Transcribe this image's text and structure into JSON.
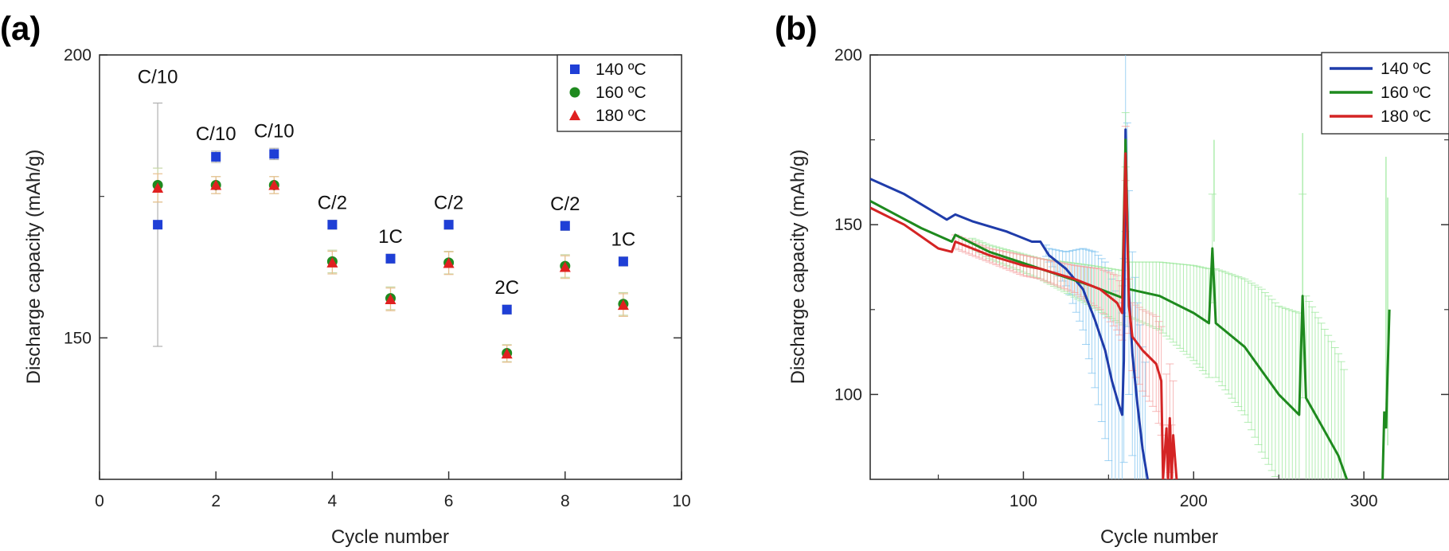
{
  "panel_labels": {
    "a": "(a)",
    "b": "(b)"
  },
  "colors": {
    "s140": "#1f3fd6",
    "s160": "#1f8a1f",
    "s180": "#e02020",
    "s140_line": "#1f3caa",
    "s160_line": "#1e8a1e",
    "s180_line": "#d42424",
    "s140_err": "#7fc4f0",
    "s160_err": "#9be89b",
    "s180_err": "#f5a0a0"
  },
  "chart_data": [
    {
      "id": "a",
      "type": "scatter",
      "xlabel": "Cycle number",
      "ylabel": "Discharge capacity (mAh/g)",
      "xlim": [
        0,
        10
      ],
      "ylim": [
        125,
        200
      ],
      "xticks": [
        "0",
        "2",
        "4",
        "6",
        "8",
        "10"
      ],
      "yticks": [
        "150",
        "200"
      ],
      "legend_position": "top-right",
      "rate_labels": [
        {
          "x": 1,
          "text": "C/10"
        },
        {
          "x": 2,
          "text": "C/10"
        },
        {
          "x": 3,
          "text": "C/10"
        },
        {
          "x": 4,
          "text": "C/2"
        },
        {
          "x": 5,
          "text": "1C"
        },
        {
          "x": 6,
          "text": "C/2"
        },
        {
          "x": 7,
          "text": "2C"
        },
        {
          "x": 8,
          "text": "C/2"
        },
        {
          "x": 9,
          "text": "1C"
        }
      ],
      "series": [
        {
          "name": "140 ºC",
          "marker": "square",
          "x": [
            1,
            2,
            3,
            4,
            5,
            6,
            7,
            8,
            9
          ],
          "y": [
            170,
            182,
            182.5,
            170,
            164,
            170,
            155,
            169.8,
            163.5
          ],
          "err": [
            21.5,
            1,
            1,
            0.8,
            0.8,
            0.8,
            0.8,
            0.8,
            0.8
          ]
        },
        {
          "name": "160 ºC",
          "marker": "circle",
          "x": [
            1,
            2,
            3,
            4,
            5,
            6,
            7,
            8,
            9
          ],
          "y": [
            177,
            177,
            177,
            163.5,
            157,
            163.3,
            147.3,
            162.7,
            156
          ],
          "err": [
            3,
            1.5,
            1.5,
            2,
            2,
            2,
            1.5,
            2,
            2
          ]
        },
        {
          "name": "180 ºC",
          "marker": "triangle",
          "x": [
            1,
            2,
            3,
            4,
            5,
            6,
            7,
            8,
            9
          ],
          "y": [
            176.5,
            177,
            177,
            163.3,
            156.8,
            163.2,
            147.2,
            162.5,
            155.8
          ],
          "err": [
            2.5,
            1.5,
            1.5,
            2,
            2,
            2,
            1.5,
            2,
            2
          ]
        }
      ]
    },
    {
      "id": "b",
      "type": "line",
      "xlabel": "Cycle number",
      "ylabel": "Discharge capacity (mAh/g)",
      "xlim": [
        10,
        350
      ],
      "ylim": [
        75,
        200
      ],
      "xticks": [
        "100",
        "200",
        "300"
      ],
      "yticks": [
        "100",
        "150",
        "200"
      ],
      "legend_position": "top-right",
      "series": [
        {
          "name": "140 ºC",
          "points": [
            [
              10,
              163.5
            ],
            [
              30,
              159
            ],
            [
              50,
              153
            ],
            [
              55,
              151.5
            ],
            [
              60,
              153
            ],
            [
              70,
              151
            ],
            [
              90,
              148
            ],
            [
              105,
              145
            ],
            [
              110,
              145
            ],
            [
              115,
              141
            ],
            [
              125,
              137
            ],
            [
              135,
              131
            ],
            [
              142,
              122
            ],
            [
              148,
              113
            ],
            [
              152,
              104
            ],
            [
              156,
              97
            ],
            [
              158,
              94
            ],
            [
              159,
              110
            ],
            [
              160,
              178
            ],
            [
              161,
              150
            ],
            [
              162,
              130
            ],
            [
              164,
              112
            ],
            [
              167,
              97
            ],
            [
              170,
              84
            ],
            [
              173,
              75
            ]
          ],
          "err_width": [
            1,
            1,
            1,
            1,
            1,
            1,
            1,
            1,
            1,
            2,
            5,
            12,
            20,
            26,
            30,
            30,
            30,
            30,
            30,
            30,
            30,
            30,
            30,
            30,
            30
          ]
        },
        {
          "name": "160 ºC",
          "points": [
            [
              10,
              157
            ],
            [
              40,
              149
            ],
            [
              58,
              145
            ],
            [
              60,
              147
            ],
            [
              80,
              142
            ],
            [
              110,
              137
            ],
            [
              140,
              132
            ],
            [
              158,
              128.5
            ],
            [
              160,
              175
            ],
            [
              162,
              131
            ],
            [
              180,
              129
            ],
            [
              200,
              124
            ],
            [
              209,
              121
            ],
            [
              211,
              143
            ],
            [
              213,
              121
            ],
            [
              230,
              114
            ],
            [
              240,
              107
            ],
            [
              250,
              100
            ],
            [
              262,
              94
            ],
            [
              264,
              129
            ],
            [
              266,
              99
            ],
            [
              275,
              91
            ],
            [
              285,
              82
            ],
            [
              290,
              75
            ]
          ],
          "err_width": [
            1,
            1,
            1,
            1,
            2,
            3,
            6,
            8,
            8,
            8,
            10,
            14,
            16,
            16,
            16,
            20,
            24,
            26,
            30,
            30,
            30,
            30,
            30,
            30
          ]
        },
        {
          "name": "180 ºC",
          "points": [
            [
              10,
              155
            ],
            [
              30,
              150
            ],
            [
              50,
              143
            ],
            [
              58,
              142
            ],
            [
              60,
              145
            ],
            [
              80,
              141
            ],
            [
              100,
              138
            ],
            [
              110,
              137
            ],
            [
              130,
              134
            ],
            [
              145,
              131
            ],
            [
              155,
              127
            ],
            [
              158,
              124
            ],
            [
              160,
              171
            ],
            [
              162,
              126
            ],
            [
              164,
              117
            ],
            [
              170,
              113
            ],
            [
              178,
              109
            ],
            [
              181,
              104
            ],
            [
              182,
              75
            ],
            [
              184,
              90
            ],
            [
              185,
              75
            ],
            [
              186,
              93
            ],
            [
              187,
              75
            ],
            [
              188,
              88
            ],
            [
              190,
              75
            ]
          ],
          "err_width": [
            1,
            1,
            1,
            1,
            2,
            2,
            3,
            3,
            4,
            6,
            8,
            8,
            8,
            8,
            10,
            12,
            14,
            16,
            16,
            16,
            16,
            16,
            16,
            16,
            16
          ]
        }
      ]
    }
  ]
}
